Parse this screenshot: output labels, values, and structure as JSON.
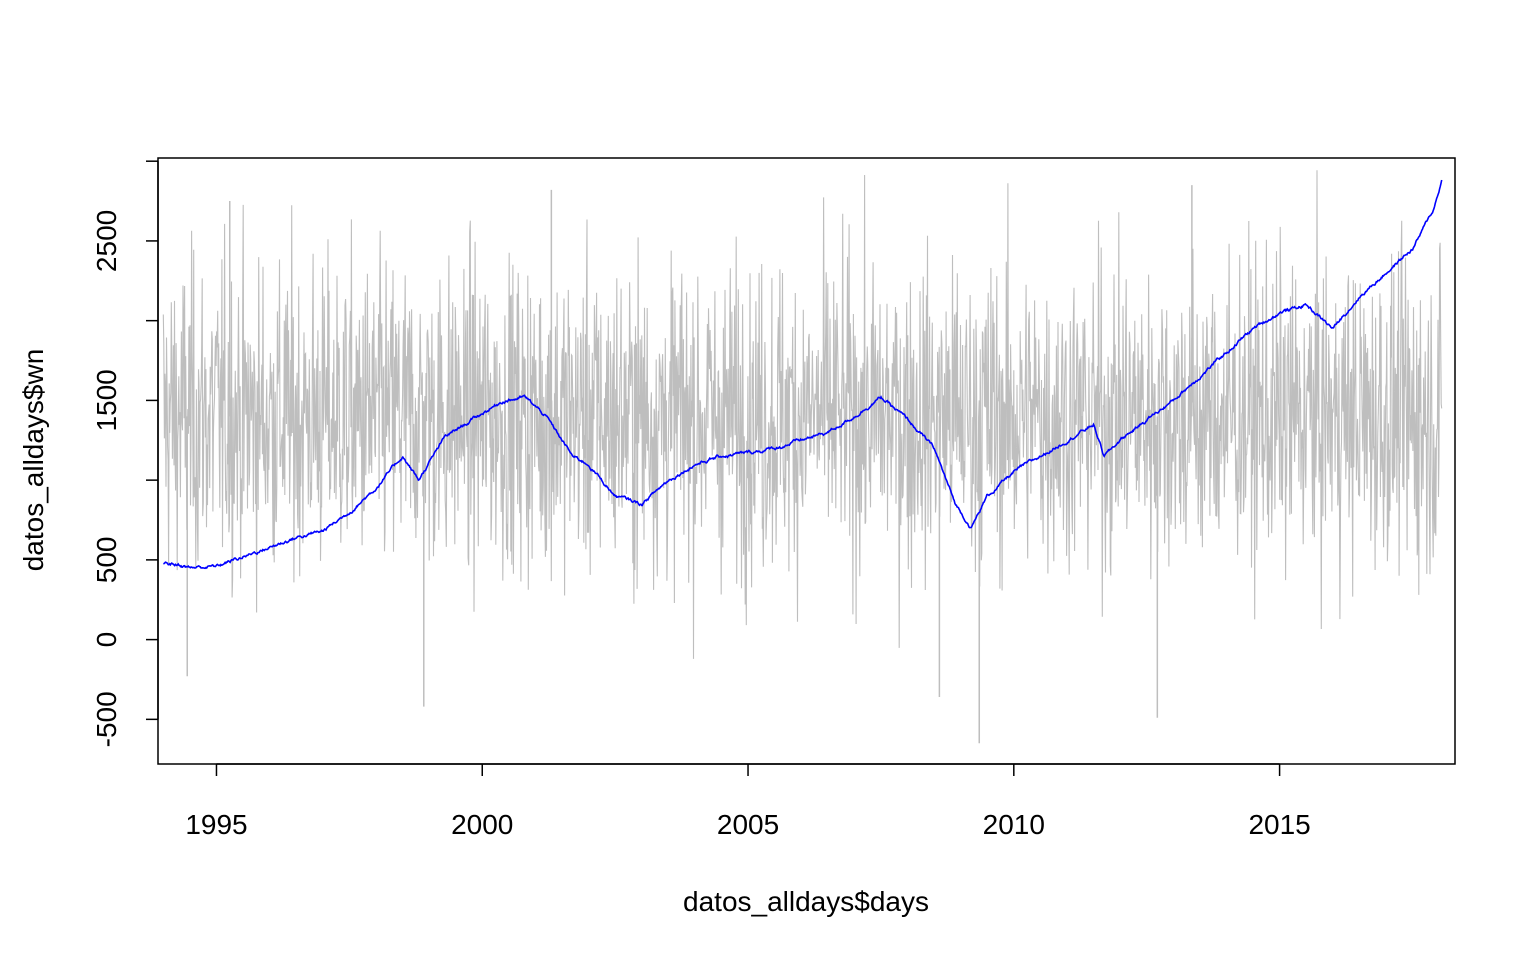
{
  "chart_data": {
    "type": "line",
    "title": "",
    "xlabel": "datos_alldays$days",
    "ylabel": "datos_alldays$wn",
    "xlim": [
      1993.9,
      2018.3
    ],
    "ylim": [
      -780,
      3020
    ],
    "x_ticks": [
      1995,
      2000,
      2005,
      2010,
      2015
    ],
    "x_tick_labels": [
      "1995",
      "2000",
      "2005",
      "2010",
      "2015"
    ],
    "y_ticks": [
      -500,
      0,
      500,
      1500,
      2500
    ],
    "y_tick_labels": [
      "-500",
      "0",
      "500",
      "1500",
      "2500"
    ],
    "y_minor_ticks": [
      1000,
      2000,
      3000
    ],
    "grid": false,
    "legend": "none",
    "x_range": [
      1994.0,
      2018.05
    ],
    "series": [
      {
        "color": "#bebebe",
        "style": "noise",
        "center": 1400,
        "spread": 480,
        "min": -650,
        "max": 2950,
        "extremes": [
          {
            "x": 1994.45,
            "y": -230
          },
          {
            "x": 1995.25,
            "y": 2750
          },
          {
            "x": 1998.9,
            "y": -420
          },
          {
            "x": 2001.3,
            "y": 2820
          },
          {
            "x": 2008.6,
            "y": -360
          },
          {
            "x": 2009.35,
            "y": -650
          },
          {
            "x": 2012.7,
            "y": -490
          },
          {
            "x": 2013.35,
            "y": 2850
          }
        ]
      },
      {
        "color": "#0000ff",
        "style": "walk",
        "points": [
          [
            1994.0,
            480
          ],
          [
            1994.3,
            470
          ],
          [
            1994.5,
            450
          ],
          [
            1995.0,
            460
          ],
          [
            1995.5,
            520
          ],
          [
            1996.0,
            580
          ],
          [
            1996.5,
            640
          ],
          [
            1997.0,
            680
          ],
          [
            1997.5,
            800
          ],
          [
            1998.0,
            950
          ],
          [
            1998.5,
            1150
          ],
          [
            1998.8,
            1000
          ],
          [
            1999.3,
            1270
          ],
          [
            2000.0,
            1420
          ],
          [
            2000.4,
            1500
          ],
          [
            2000.8,
            1520
          ],
          [
            2001.2,
            1400
          ],
          [
            2001.7,
            1150
          ],
          [
            2002.0,
            1100
          ],
          [
            2002.5,
            900
          ],
          [
            2003.0,
            850
          ],
          [
            2003.5,
            1000
          ],
          [
            2004.0,
            1100
          ],
          [
            2004.5,
            1150
          ],
          [
            2005.0,
            1170
          ],
          [
            2005.5,
            1200
          ],
          [
            2006.0,
            1250
          ],
          [
            2006.5,
            1300
          ],
          [
            2007.0,
            1400
          ],
          [
            2007.5,
            1520
          ],
          [
            2008.0,
            1380
          ],
          [
            2008.5,
            1200
          ],
          [
            2008.9,
            850
          ],
          [
            2009.2,
            700
          ],
          [
            2009.5,
            900
          ],
          [
            2010.0,
            1050
          ],
          [
            2010.5,
            1150
          ],
          [
            2011.0,
            1250
          ],
          [
            2011.5,
            1350
          ],
          [
            2011.7,
            1150
          ],
          [
            2012.0,
            1250
          ],
          [
            2012.5,
            1380
          ],
          [
            2013.0,
            1500
          ],
          [
            2013.5,
            1650
          ],
          [
            2014.0,
            1800
          ],
          [
            2014.5,
            1950
          ],
          [
            2015.0,
            2050
          ],
          [
            2015.5,
            2100
          ],
          [
            2016.0,
            1950
          ],
          [
            2016.5,
            2150
          ],
          [
            2017.0,
            2300
          ],
          [
            2017.5,
            2450
          ],
          [
            2017.9,
            2700
          ],
          [
            2018.05,
            2880
          ]
        ]
      }
    ]
  }
}
